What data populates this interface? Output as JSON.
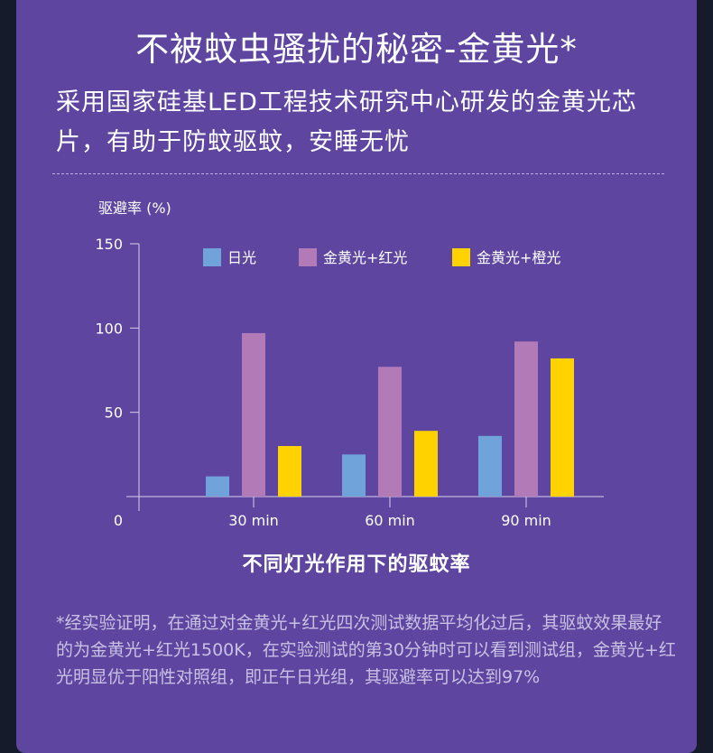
{
  "header": {
    "title": "不被蚊虫骚扰的秘密-金黄光*",
    "subtitle": "采用国家硅基LED工程技术研究中心研发的金黄光芯片，有助于防蚊驱蚊，安睡无忧"
  },
  "chart_data": {
    "type": "bar",
    "title": "不同灯光作用下的驱蚊率",
    "ylabel": "驱避率 (%)",
    "xlabel": "",
    "categories": [
      "30 min",
      "60 min",
      "90 min"
    ],
    "ylim": [
      0,
      150
    ],
    "yticks": [
      "0",
      "50",
      "100",
      "150"
    ],
    "grid": false,
    "legend_position": "top",
    "series": [
      {
        "name": "日光",
        "color": "#6fa3d9",
        "values": [
          12,
          25,
          36
        ]
      },
      {
        "name": "金黄光+红光",
        "color": "#b27ab7",
        "values": [
          97,
          77,
          92
        ]
      },
      {
        "name": "金黄光+橙光",
        "color": "#ffd200",
        "values": [
          30,
          39,
          82
        ]
      }
    ]
  },
  "footnote": "*经实验证明，在通过对金黄光+红光四次测试数据平均化过后，其驱蚊效果最好的为金黄光+红光1500K，在实验测试的第30分钟时可以看到测试组，金黄光+红光明显优于阳性对照组，即正午日光组，其驱避率可以达到97%"
}
